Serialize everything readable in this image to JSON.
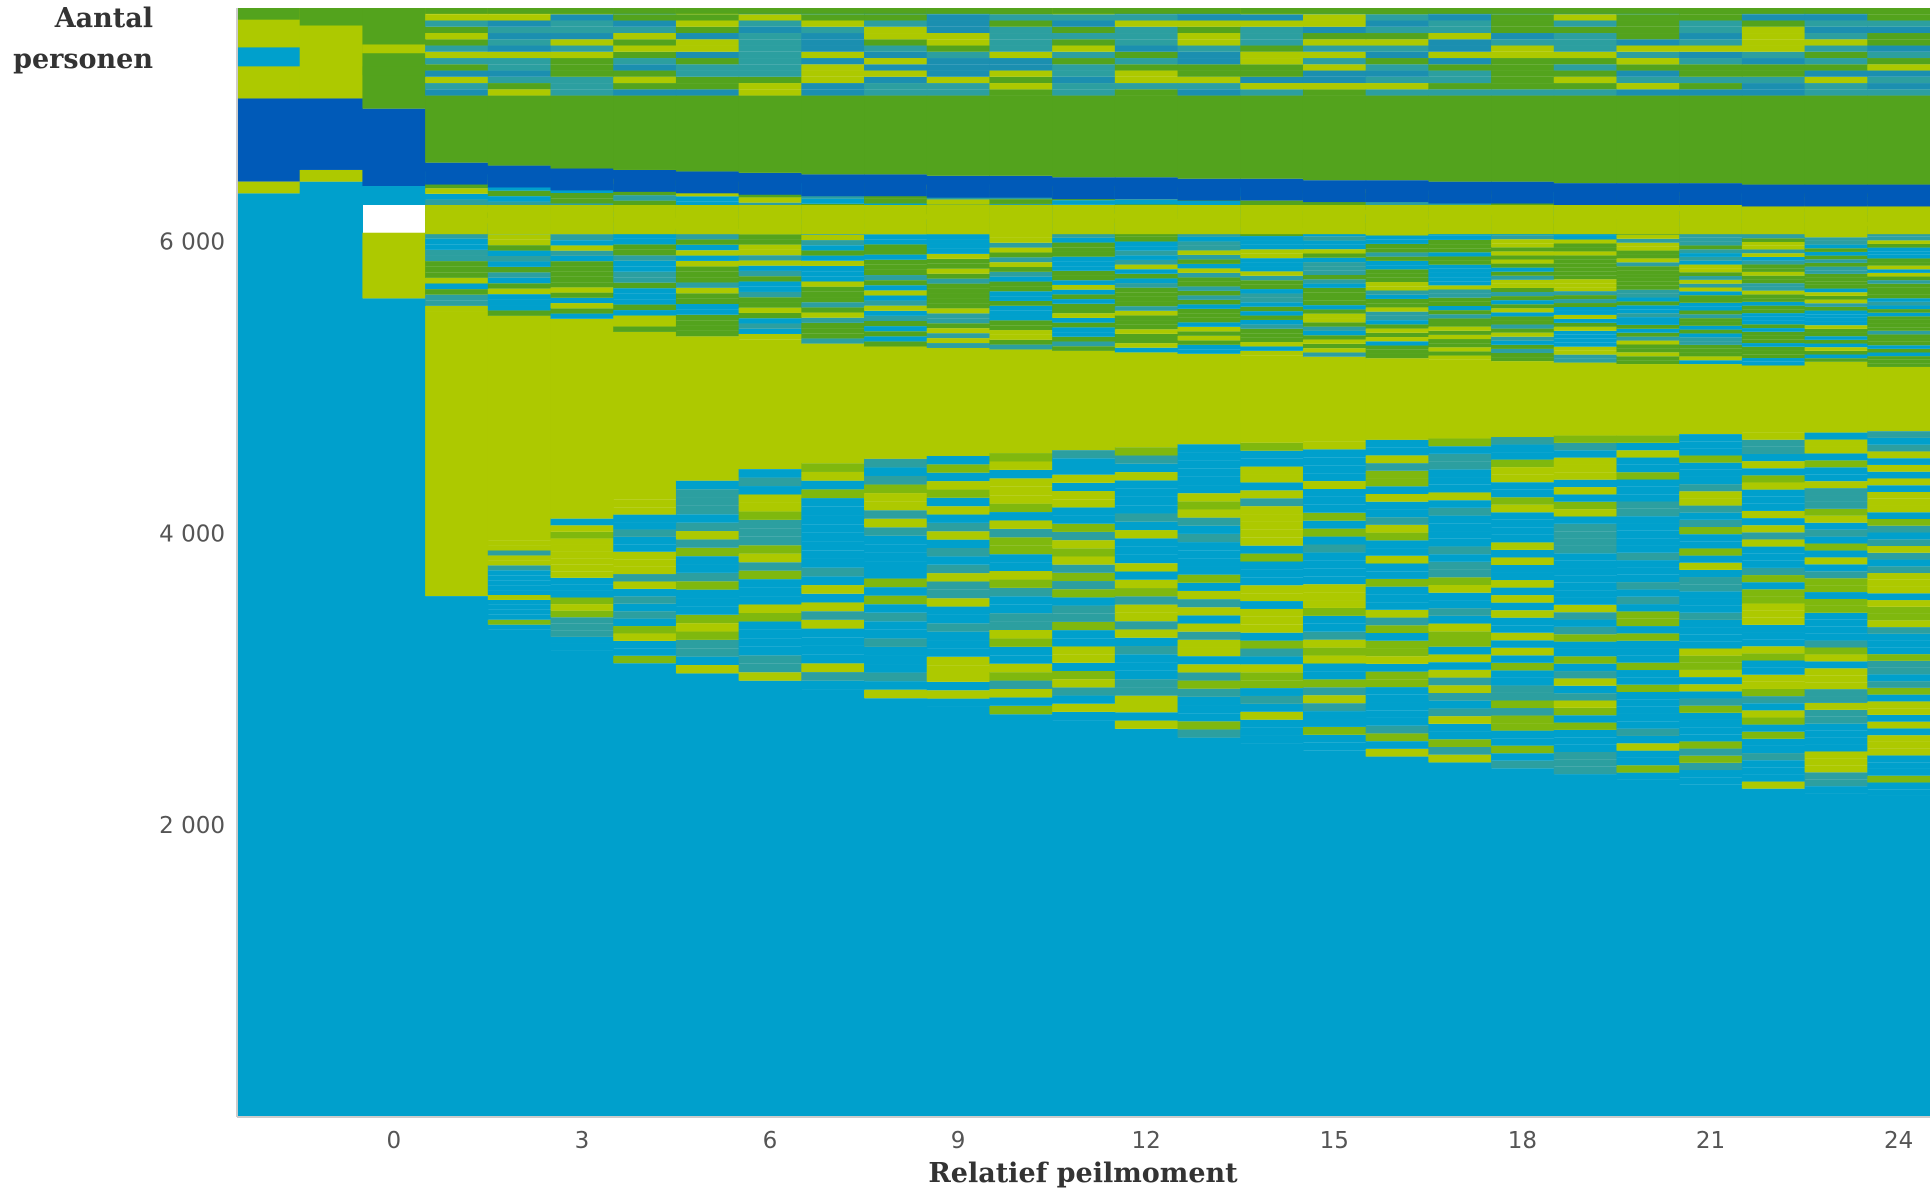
{
  "chart_data": {
    "type": "sequence-index-plot",
    "title": "",
    "ylabel_lines": [
      "Aantal",
      "personen"
    ],
    "xlabel": "Relatief peilmoment",
    "x_ticks": [
      "0",
      "3",
      "6",
      "9",
      "12",
      "15",
      "18",
      "21",
      "24"
    ],
    "y_ticks": [
      "2 000",
      "4 000",
      "6 000"
    ],
    "x_periods": [
      -2,
      -1,
      0,
      1,
      2,
      3,
      4,
      5,
      6,
      7,
      8,
      9,
      10,
      11,
      12,
      13,
      14,
      15,
      16,
      17,
      18,
      19,
      20,
      21,
      22,
      23,
      24
    ],
    "ylim": [
      0,
      7600
    ],
    "colors": {
      "state_1": "#00a0cc",
      "state_2": "#adc900",
      "state_3": "#53a31d",
      "state_4": "#005ab8",
      "noise_a": "#2c9fa0",
      "noise_b": "#7fb80e",
      "noise_c": "#1b8fb0",
      "axis": "#cccccc"
    },
    "series": [
      {
        "state": "state_1",
        "values": [
          6330,
          6410,
          5610,
          3570,
          3340,
          3200,
          3110,
          3040,
          2990,
          2930,
          2870,
          2810,
          2760,
          2720,
          2660,
          2600,
          2560,
          2510,
          2470,
          2430,
          2390,
          2350,
          2310,
          2280,
          2250,
          2220,
          2200
        ]
      },
      {
        "state": "state_2",
        "values": [
          null,
          null,
          5840,
          5520,
          5490,
          5470,
          5380,
          5350,
          5330,
          5300,
          5280,
          5270,
          5260,
          5250,
          5240,
          5230,
          5220,
          5210,
          5200,
          5190,
          5180,
          5170,
          5160,
          5160,
          5150,
          5150,
          5140
        ]
      },
      {
        "state": "state_1_lower_band_top",
        "values": [
          null,
          null,
          null,
          3570,
          3950,
          4100,
          4230,
          4360,
          4440,
          4480,
          4510,
          4530,
          4550,
          4570,
          4590,
          4610,
          4620,
          4630,
          4640,
          4650,
          4660,
          4670,
          4670,
          4680,
          4690,
          4690,
          4700
        ]
      },
      {
        "state": "state_4",
        "values": [
          6980,
          6980,
          6910,
          6540,
          6520,
          6500,
          6490,
          6480,
          6470,
          6460,
          6460,
          6450,
          6450,
          6440,
          6440,
          6430,
          6430,
          6420,
          6420,
          6410,
          6410,
          6400,
          6400,
          6400,
          6390,
          6390,
          6390
        ]
      }
    ]
  }
}
